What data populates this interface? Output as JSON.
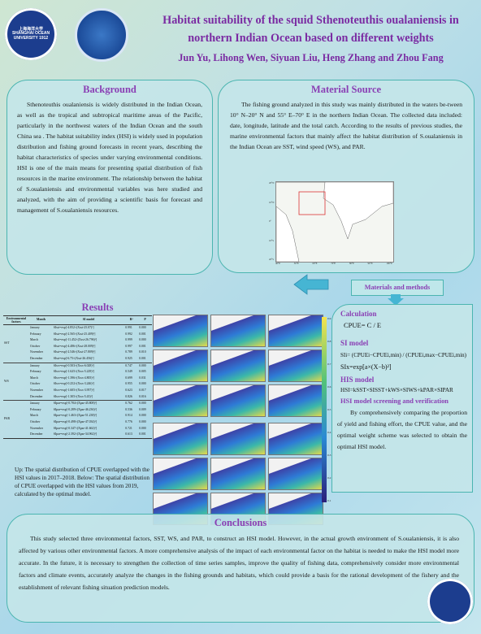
{
  "header": {
    "logo_left_text": "上海海洋大学 SHANGHAI OCEAN UNIVERSITY 1912",
    "title_line1": "Habitat suitability of the squid Sthenoteuthis oualaniensis in",
    "title_line2": "northern Indian Ocean based on different weights",
    "authors": "Jun Yu, Lihong Wen, Siyuan Liu, Heng Zhang and Zhou Fang"
  },
  "background": {
    "heading": "Background",
    "text": "Sthenoteuthis oualaniensis is widely distributed in the Indian Ocean, as well as the tropical and subtropical maritime areas of the Pacific, particularly in the northwest waters of the Indian Ocean and the south China sea . The habitat suitability index (HSI) is widely used in population distribution and fishing ground forecasts in recent years, describing the habitat characteristics of species under varying environmental conditions. HSI is one of the main means for presenting spatial distribution of fish resources in the marine environment. The relationship between the habitat of S.oualaniensis and environmental variables was here studied and analyzed, with the aim of providing a scientific basis for forecast and management of S.oualaniensis resources."
  },
  "material": {
    "heading": "Material Source",
    "text": "The fishing ground analyzed in this study was mainly distributed in the waters be-tween 10° N–20° N and 55° E–70° E in the northern Indian Ocean. The collected data included: date, longitude, latitude and the total catch. According to the results of previous studies, the marine environmental factors that mainly affect the habitat distribution of S.oualaniensis in the Indian Ocean are SST, wind speed (WS), and PAR.",
    "map_x_ticks": [
      "40°E",
      "50°E",
      "60°E",
      "70°E",
      "80°E",
      "90°E",
      "100°E"
    ],
    "map_y_ticks": [
      "20°N",
      "10°N",
      "0°",
      "10°S",
      "20°S"
    ]
  },
  "methods_label": "Materials and methods",
  "results": {
    "heading": "Results",
    "table_headers": [
      "Environmental factors",
      "Month",
      "SI model",
      "R²",
      "P"
    ],
    "groups": [
      {
        "factor": "SST",
        "rows": [
          [
            "January",
            "SIsst=exp[-4.852×(Xsst-25.07)²]",
            "0.991",
            "0.000"
          ],
          [
            "February",
            "SIsst=exp[-2.565×(Xsst-25.409)²]",
            "0.992",
            "0.001"
          ],
          [
            "March",
            "SIsst=exp[-11.452×(Xsst-26.796)²]",
            "0.999",
            "0.000"
          ],
          [
            "October",
            "SIsst=exp[-4.486×(Xsst-28.009)²]",
            "0.997",
            "0.001"
          ],
          [
            "November",
            "SIsst=exp[-2.546×(Xsst-27.809)²]",
            "0.789",
            "0.010"
          ],
          [
            "December",
            "SIsst=exp[-6.75×(Xsst-26.456)²]",
            "0.925",
            "0.001"
          ]
        ]
      },
      {
        "factor": "WS",
        "rows": [
          [
            "January",
            "SIws=exp[-0.503×(Xws-6.028)²]",
            "0.747",
            "0.000"
          ],
          [
            "February",
            "SIws=exp[-1.625×(Xws-5.229)²]",
            "0.549",
            "0.005"
          ],
          [
            "March",
            "SIws=exp[-1.396×(Xws-4.805)²]",
            "0.699",
            "0.031"
          ],
          [
            "October",
            "SIws=exp[-0.252×(Xws-3.246)²]",
            "0.955",
            "0.000"
          ],
          [
            "November",
            "SIws=exp[-1.605×(Xws-3.957)²]",
            "0.623",
            "0.017"
          ],
          [
            "December",
            "SIws=exp[-1.305×(Xws-5.43)²]",
            "0.826",
            "0.016"
          ]
        ]
      },
      {
        "factor": "PAR",
        "rows": [
          [
            "January",
            "SIpar=exp[-0.784×(Xpar-45.808)²]",
            "0.762",
            "0.000"
          ],
          [
            "February",
            "SIpar=exp[-0.289×(Xpar-46.236)²]",
            "0.536",
            "0.009"
          ],
          [
            "March",
            "SIpar=exp[-1.463×(Xpar-51.238)²]",
            "0.914",
            "0.000"
          ],
          [
            "October",
            "SIpar=exp[-0.498×(Xpar-47.034)²]",
            "0.776",
            "0.000"
          ],
          [
            "November",
            "SIpar=exp[-0.347×(Xpar-41.662)²]",
            "0.721",
            "0.000"
          ],
          [
            "December",
            "SIpar=exp[-2.392×(Xpar-34.962)²]",
            "0.613",
            "0.001"
          ]
        ]
      }
    ],
    "colorbar_ticks": [
      "0.9",
      "0.8",
      "0.7",
      "0.6",
      "0.5",
      "0.4",
      "0.3",
      "0.2",
      "0.1"
    ],
    "caption": "Up: The spatial distribution of CPUE overlapped with the HSI values in 2017–2018. Below: The spatial distribution of CPUE overlapped with the HSI values from 2019, calculated by the optimal model."
  },
  "methods": {
    "calc_heading": "Calculation",
    "calc_formula": "CPUE= C / E",
    "si_heading": "SI model",
    "si_formula1": "SIi= (CPUEi−CPUEi,min) / (CPUEi,max−CPUEi,min)",
    "si_formula2": "SIx=exp[a×(X−b)²]",
    "hsi_heading": "HIS model",
    "hsi_formula": "HSI=kSST×SISST+kWS×SIWS+kPAR×SIPAR",
    "verify_heading": "HSI model screening and verification",
    "verify_text": "By comprehensively comparing the proportion of yield and fishing effort, the CPUE value, and the optimal weight scheme was selected to obtain the optimal HSI model."
  },
  "conclusions": {
    "heading": "Conclusions",
    "text": "This study selected three environmental factors, SST, WS, and PAR, to construct an HSI model. However, in the actual growth environment of S.oualaniensis, it is also affected by various other environmental factors. A more comprehensive analysis of the impact of each environmental factor on the habitat is needed to make the HSI model more accurate. In the future, it is necessary to strengthen the collection of time series samples, improve the quality of fishing data, comprehensively consider more environmental factors and climate events, accurately analyze the changes in the fishing grounds and habitats, which could provide a basis for the rational development of the fishery and the establishment of relevant fishing situation prediction models."
  }
}
